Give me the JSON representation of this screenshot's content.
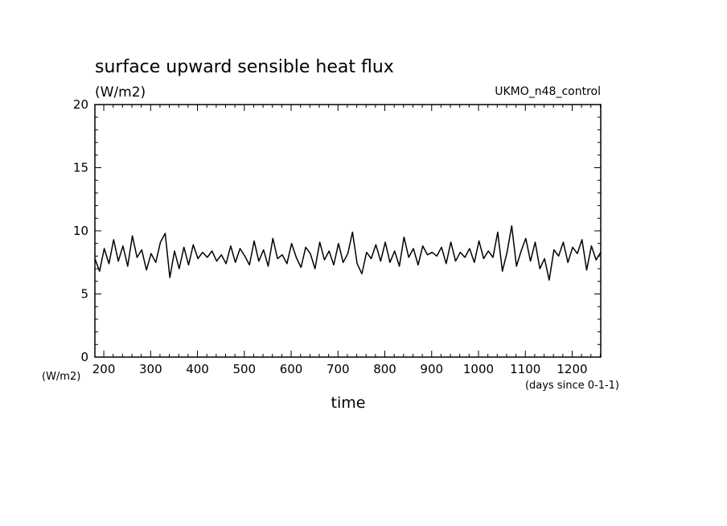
{
  "chart_data": {
    "type": "line",
    "title": "surface upward sensible heat flux",
    "subtitle": "(W/m2)",
    "model_tag": "UKMO_n48_control",
    "xlabel": "time",
    "x_units": "(days since 0-1-1)",
    "y_units": "(W/m2)",
    "xlim": [
      181,
      1261
    ],
    "ylim": [
      0,
      20
    ],
    "x_ticks": [
      200,
      300,
      400,
      500,
      600,
      700,
      800,
      900,
      1000,
      1100,
      1200
    ],
    "y_ticks": [
      0,
      5,
      10,
      15,
      20
    ],
    "x_minor_step": 20,
    "y_minor_step": 1,
    "grid": false,
    "line_color": "#000000",
    "series": [
      {
        "x": [
          181,
          191,
          201,
          211,
          221,
          231,
          241,
          251,
          261,
          271,
          281,
          291,
          301,
          311,
          321,
          331,
          341,
          351,
          361,
          371,
          381,
          391,
          401,
          411,
          421,
          431,
          441,
          451,
          461,
          471,
          481,
          491,
          501,
          511,
          521,
          531,
          541,
          551,
          561,
          571,
          581,
          591,
          601,
          611,
          621,
          631,
          641,
          651,
          661,
          671,
          681,
          691,
          701,
          711,
          721,
          731,
          741,
          751,
          761,
          771,
          781,
          791,
          801,
          811,
          821,
          831,
          841,
          851,
          861,
          871,
          881,
          891,
          901,
          911,
          921,
          931,
          941,
          951,
          961,
          971,
          981,
          991,
          1001,
          1011,
          1021,
          1031,
          1041,
          1051,
          1061,
          1071,
          1081,
          1091,
          1101,
          1111,
          1121,
          1131,
          1141,
          1151,
          1161,
          1171,
          1181,
          1191,
          1201,
          1211,
          1221,
          1231,
          1241,
          1251,
          1261
        ],
        "values": [
          7.8,
          6.8,
          8.6,
          7.4,
          9.3,
          7.6,
          8.8,
          7.2,
          9.6,
          7.9,
          8.5,
          6.9,
          8.2,
          7.5,
          9.1,
          9.8,
          6.3,
          8.4,
          7.0,
          8.7,
          7.3,
          8.9,
          7.8,
          8.3,
          7.9,
          8.4,
          7.6,
          8.1,
          7.4,
          8.8,
          7.5,
          8.6,
          8.0,
          7.3,
          9.2,
          7.6,
          8.5,
          7.2,
          9.4,
          7.8,
          8.1,
          7.4,
          9.0,
          7.9,
          7.1,
          8.7,
          8.2,
          7.0,
          9.1,
          7.7,
          8.4,
          7.3,
          9.0,
          7.5,
          8.2,
          9.9,
          7.4,
          6.6,
          8.3,
          7.8,
          8.9,
          7.6,
          9.1,
          7.5,
          8.4,
          7.2,
          9.5,
          7.9,
          8.6,
          7.3,
          8.8,
          8.1,
          8.3,
          8.0,
          8.7,
          7.4,
          9.1,
          7.6,
          8.3,
          7.9,
          8.6,
          7.5,
          9.2,
          7.8,
          8.4,
          7.9,
          9.9,
          6.8,
          8.3,
          10.4,
          7.2,
          8.4,
          9.4,
          7.6,
          9.1,
          7.0,
          7.8,
          6.1,
          8.5,
          8.0,
          9.1,
          7.5,
          8.7,
          8.2,
          9.3,
          6.9,
          8.8,
          7.7,
          8.3
        ]
      }
    ]
  }
}
